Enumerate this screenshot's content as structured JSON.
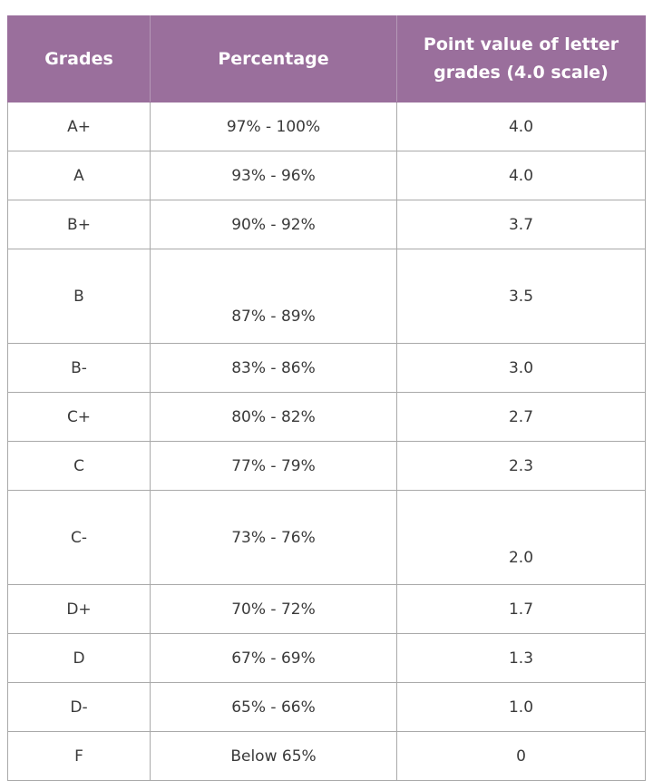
{
  "table": {
    "headers": [
      "Grades",
      "Percentage",
      "Point value of letter grades (4.0 scale)"
    ],
    "rows": [
      {
        "grade": "A+",
        "percentage": "97% - 100%",
        "points": "4.0"
      },
      {
        "grade": "A",
        "percentage": "93% - 96%",
        "points": "4.0"
      },
      {
        "grade": "B+",
        "percentage": "90% - 92%",
        "points": "3.7"
      },
      {
        "grade": "B",
        "percentage": "87% - 89%",
        "points": "3.5"
      },
      {
        "grade": "B-",
        "percentage": "83% - 86%",
        "points": "3.0"
      },
      {
        "grade": "C+",
        "percentage": "80% - 82%",
        "points": "2.7"
      },
      {
        "grade": "C",
        "percentage": "77% - 79%",
        "points": "2.3"
      },
      {
        "grade": "C-",
        "percentage": "73% - 76%",
        "points": "2.0"
      },
      {
        "grade": "D+",
        "percentage": "70% - 72%",
        "points": "1.7"
      },
      {
        "grade": "D",
        "percentage": "67% - 69%",
        "points": "1.3"
      },
      {
        "grade": "D-",
        "percentage": "65% - 66%",
        "points": "1.0"
      },
      {
        "grade": "F",
        "percentage": "Below 65%",
        "points": "0"
      }
    ]
  },
  "colors": {
    "header_bg": "#9a6f9c",
    "header_text": "#ffffff",
    "border": "#a9a9a9",
    "cell_text": "#3a3a3a"
  }
}
